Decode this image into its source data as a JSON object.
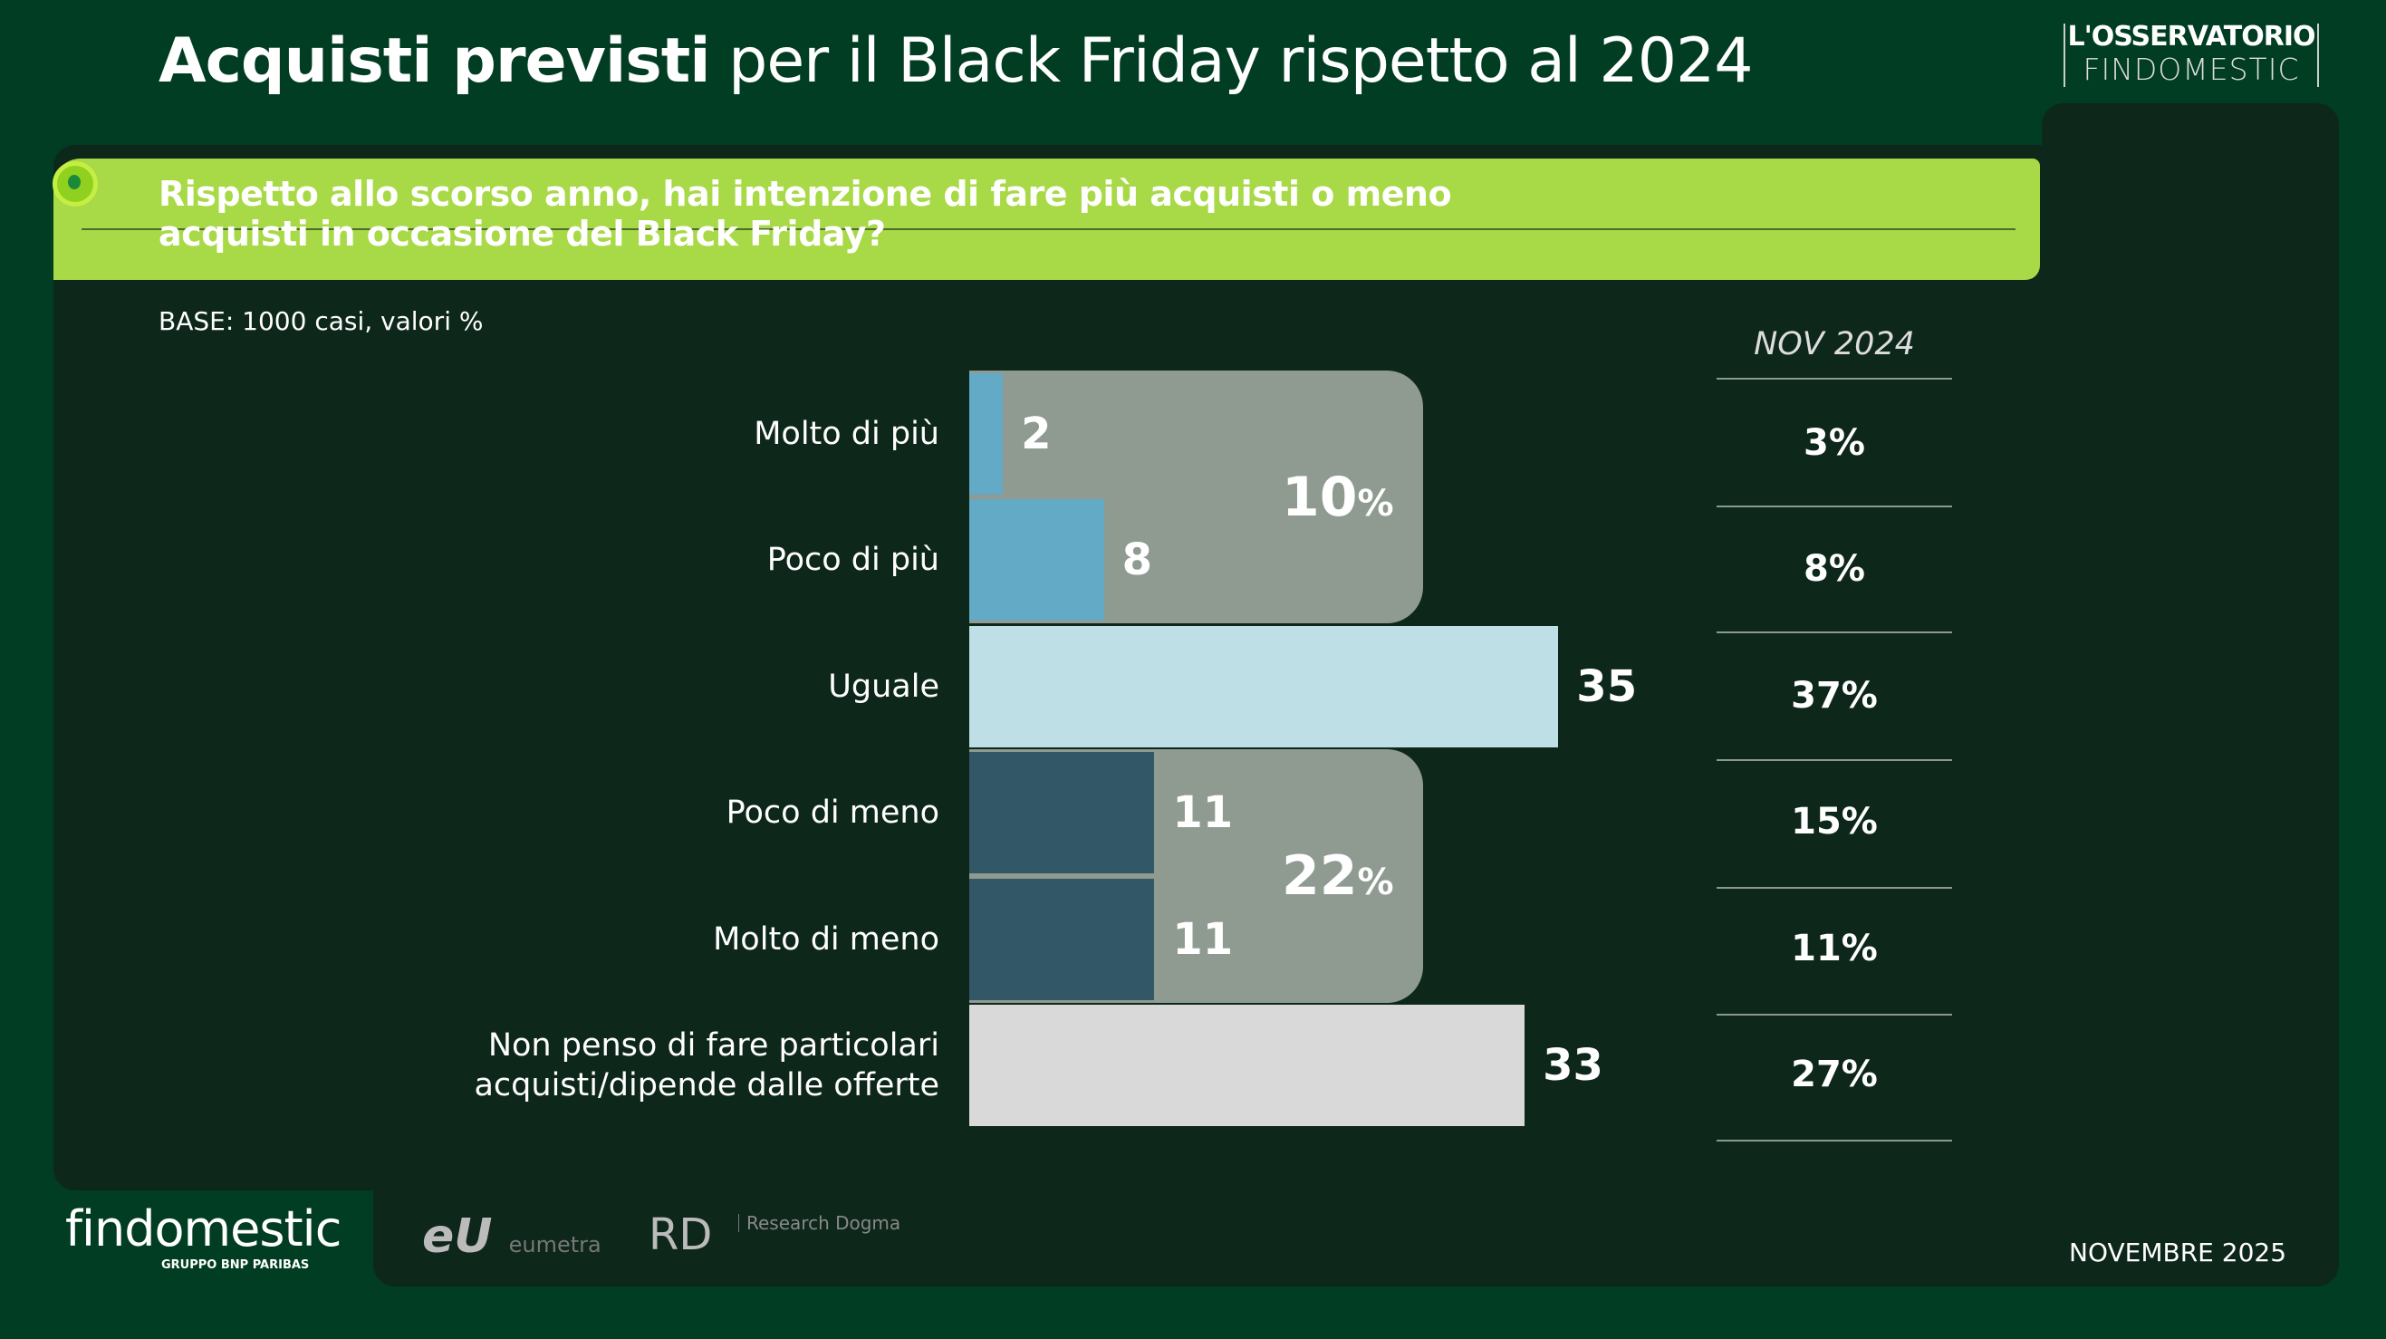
{
  "header": {
    "title_bold": "Acquisti previsti",
    "title_rest": " per il Black Friday rispetto al 2024",
    "brand_line1": "L'OSSERVATORIO",
    "brand_line2": "FINDOMESTIC"
  },
  "question": {
    "line1": "Rispetto allo scorso anno, hai intenzione di fare più acquisti o meno",
    "line2": "acquisti in occasione del Black Friday?"
  },
  "base": "BASE: 1000 casi, valori %",
  "chart_data": {
    "type": "bar",
    "orientation": "horizontal",
    "unit": "%",
    "categories": [
      "Molto di più",
      "Poco di più",
      "Uguale",
      "Poco di meno",
      "Molto di meno",
      "Non penso di fare particolari acquisti/dipende dalle offerte"
    ],
    "values": [
      2,
      8,
      35,
      11,
      11,
      33
    ],
    "colors": [
      "#63aac6",
      "#63aac6",
      "#bfdfe7",
      "#325867",
      "#325867",
      "#d9d9d9"
    ],
    "groups": [
      {
        "label_value": "10",
        "label_unit": "%",
        "rows": [
          0,
          1
        ]
      },
      {
        "label_value": "22",
        "label_unit": "%",
        "rows": [
          3,
          4
        ]
      }
    ],
    "comparison": {
      "header": "NOV 2024",
      "values": [
        "3%",
        "8%",
        "37%",
        "15%",
        "11%",
        "27%"
      ]
    }
  },
  "footer": {
    "logo": "findomestic",
    "logo_sub": "GRUPPO BNP PARIBAS",
    "partner1": "eumetra",
    "partner2": "Research Dogma",
    "date": "NOVEMBRE 2025"
  }
}
